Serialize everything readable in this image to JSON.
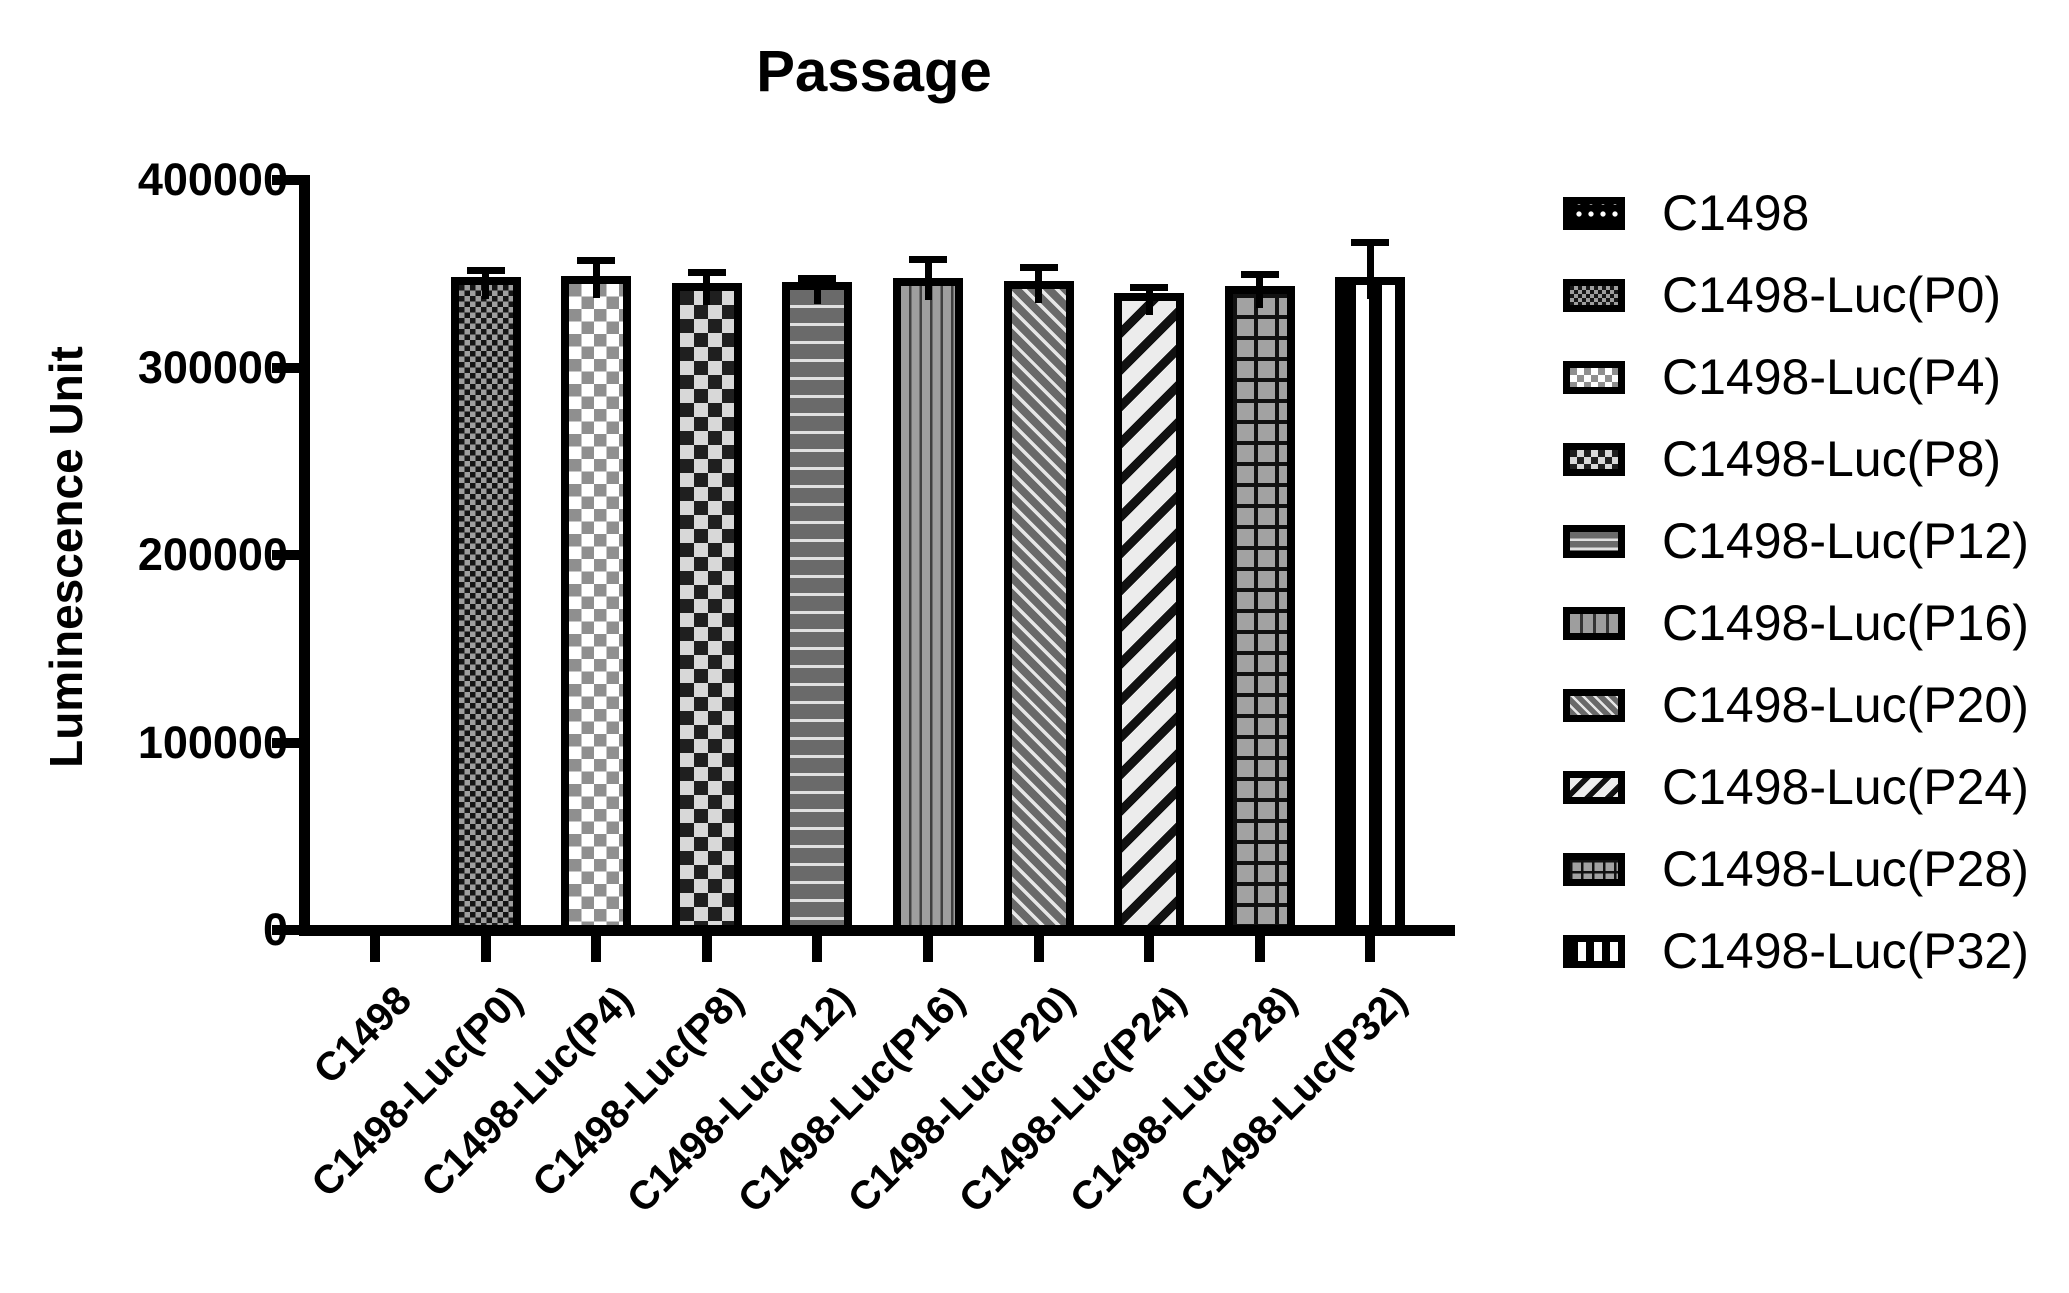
{
  "colors": {
    "ink": "#000000",
    "paper": "#ffffff"
  },
  "chart_data": {
    "type": "bar",
    "title": "Passage",
    "xlabel": "",
    "ylabel": "Luminescence Unit",
    "ylim": [
      0,
      400000
    ],
    "yticks": [
      0,
      100000,
      200000,
      300000,
      400000
    ],
    "ytick_labels": [
      "0",
      "100000",
      "200000",
      "300000",
      "400000"
    ],
    "grid": false,
    "legend_position": "right",
    "error_bars": "plus-sd",
    "categories": [
      "C1498",
      "C1498-Luc(P0)",
      "C1498-Luc(P4)",
      "C1498-Luc(P8)",
      "C1498-Luc(P12)",
      "C1498-Luc(P16)",
      "C1498-Luc(P20)",
      "C1498-Luc(P24)",
      "C1498-Luc(P28)",
      "C1498-Luc(P32)"
    ],
    "bars": [
      {
        "label": "C1498",
        "value": 0,
        "error": 0,
        "pattern": "dots-black"
      },
      {
        "label": "C1498-Luc(P0)",
        "value": 348500,
        "error": 3500,
        "pattern": "checker-fine-dark"
      },
      {
        "label": "C1498-Luc(P4)",
        "value": 349000,
        "error": 8000,
        "pattern": "checker-gray-white"
      },
      {
        "label": "C1498-Luc(P8)",
        "value": 345000,
        "error": 5500,
        "pattern": "checker-black-lightgray"
      },
      {
        "label": "C1498-Luc(P12)",
        "value": 345500,
        "error": 2000,
        "pattern": "hlines-on-darkgray"
      },
      {
        "label": "C1498-Luc(P16)",
        "value": 347500,
        "error": 10000,
        "pattern": "vlines-on-gray"
      },
      {
        "label": "C1498-Luc(P20)",
        "value": 346000,
        "error": 7500,
        "pattern": "diag-down-white-on-gray"
      },
      {
        "label": "C1498-Luc(P24)",
        "value": 340000,
        "error": 2500,
        "pattern": "diag-up-black-on-white"
      },
      {
        "label": "C1498-Luc(P28)",
        "value": 343500,
        "error": 6000,
        "pattern": "grid-black-on-gray"
      },
      {
        "label": "C1498-Luc(P32)",
        "value": 348500,
        "error": 18000,
        "pattern": "vbars-black-white"
      }
    ]
  }
}
